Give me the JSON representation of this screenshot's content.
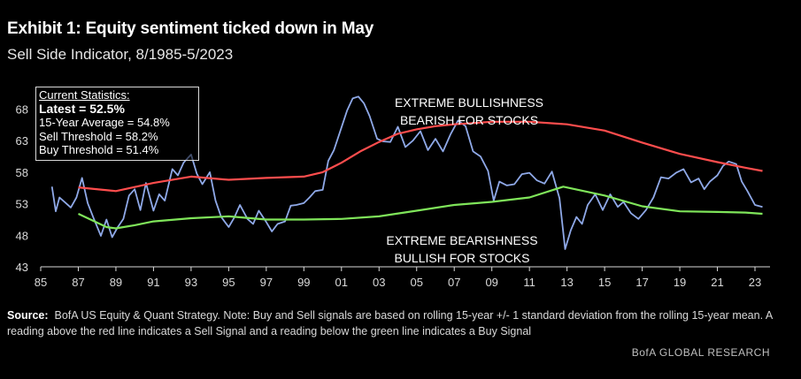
{
  "header": {
    "title": "Exhibit 1: Equity sentiment ticked down in May",
    "subtitle": "Sell Side Indicator, 8/1985-5/2023"
  },
  "stats": {
    "heading": "Current Statistics:",
    "latest": "Latest = 52.5%",
    "avg": "15-Year Average = 54.8%",
    "sell": "Sell Threshold = 58.2%",
    "buy": "Buy Threshold = 51.4%"
  },
  "annotations": {
    "bull_1": "EXTREME BULLISHNESS",
    "bull_2": "BEARISH FOR STOCKS",
    "bear_1": "EXTREME BEARISHNESS",
    "bear_2": "BULLISH FOR STOCKS"
  },
  "source": {
    "label": "Source:",
    "text": "BofA US Equity & Quant Strategy. Note: Buy and Sell signals are based on rolling 15-year +/- 1 standard deviation from the rolling 15-year mean. A reading above the red line indicates a Sell Signal and a reading below the green line indicates a Buy Signal"
  },
  "footer": {
    "brand": "BofA GLOBAL RESEARCH"
  },
  "colors": {
    "indicator": "#8fa9e8",
    "sell": "#ff4d4d",
    "buy": "#7fe55a",
    "background": "#000000"
  },
  "chart_data": {
    "type": "line",
    "title": "Sell Side Indicator, 8/1985-5/2023",
    "xlabel": "",
    "ylabel": "",
    "xlim": [
      1985,
      2023.8
    ],
    "ylim": [
      43,
      72
    ],
    "xtick_labels": [
      "85",
      "87",
      "89",
      "91",
      "93",
      "95",
      "97",
      "99",
      "01",
      "03",
      "05",
      "07",
      "09",
      "11",
      "13",
      "15",
      "17",
      "19",
      "21",
      "23"
    ],
    "xtick_values": [
      1985,
      1987,
      1989,
      1991,
      1993,
      1995,
      1997,
      1999,
      2001,
      2003,
      2005,
      2007,
      2009,
      2011,
      2013,
      2015,
      2017,
      2019,
      2021,
      2023
    ],
    "ytick_values": [
      43,
      48,
      53,
      58,
      63,
      68
    ],
    "series": [
      {
        "name": "Sell Side Indicator",
        "x": [
          1985.6,
          1985.8,
          1986.0,
          1986.3,
          1986.6,
          1986.9,
          1987.2,
          1987.5,
          1987.8,
          1988.2,
          1988.5,
          1988.8,
          1989.1,
          1989.4,
          1989.7,
          1990.0,
          1990.3,
          1990.6,
          1991.0,
          1991.3,
          1991.6,
          1992.0,
          1992.3,
          1992.6,
          1993.0,
          1993.3,
          1993.6,
          1994.0,
          1994.3,
          1994.6,
          1995.0,
          1995.3,
          1995.6,
          1996.0,
          1996.3,
          1996.6,
          1997.0,
          1997.3,
          1997.6,
          1998.0,
          1998.3,
          1998.6,
          1999.0,
          1999.3,
          1999.6,
          2000.0,
          2000.3,
          2000.6,
          2001.0,
          2001.3,
          2001.6,
          2001.9,
          2002.2,
          2002.5,
          2002.9,
          2003.2,
          2003.6,
          2004.0,
          2004.4,
          2004.8,
          2005.2,
          2005.6,
          2006.0,
          2006.4,
          2006.8,
          2007.2,
          2007.6,
          2008.0,
          2008.4,
          2008.8,
          2009.1,
          2009.4,
          2009.8,
          2010.2,
          2010.6,
          2011.0,
          2011.4,
          2011.8,
          2012.2,
          2012.6,
          2012.9,
          2013.2,
          2013.5,
          2013.8,
          2014.1,
          2014.5,
          2014.9,
          2015.3,
          2015.7,
          2016.0,
          2016.4,
          2016.8,
          2017.2,
          2017.6,
          2018.0,
          2018.4,
          2018.8,
          2019.2,
          2019.6,
          2020.0,
          2020.3,
          2020.6,
          2021.0,
          2021.3,
          2021.6,
          2022.0,
          2022.3,
          2022.6,
          2023.0,
          2023.4
        ],
        "values": [
          55.7,
          51.8,
          54.0,
          53.2,
          52.4,
          54.0,
          57.1,
          53.1,
          50.8,
          47.9,
          50.5,
          47.7,
          49.3,
          50.6,
          54.3,
          55.3,
          52.0,
          56.3,
          51.9,
          54.5,
          53.5,
          58.5,
          57.5,
          59.5,
          60.8,
          57.8,
          56.1,
          58.0,
          53.5,
          50.9,
          49.3,
          50.8,
          52.8,
          50.6,
          49.8,
          51.9,
          50.1,
          48.6,
          49.8,
          50.2,
          52.7,
          52.8,
          53.1,
          54.0,
          55.0,
          55.2,
          59.8,
          61.5,
          65.1,
          67.8,
          69.7,
          70.0,
          68.9,
          66.9,
          63.3,
          62.9,
          62.8,
          65.2,
          62.0,
          63.0,
          64.5,
          61.5,
          63.3,
          61.3,
          64.0,
          66.2,
          65.3,
          61.3,
          60.5,
          58.2,
          53.5,
          56.5,
          55.9,
          56.1,
          57.7,
          57.9,
          56.7,
          56.2,
          58.1,
          53.9,
          45.8,
          48.8,
          50.9,
          49.8,
          52.8,
          54.5,
          52.0,
          54.5,
          52.5,
          53.3,
          51.5,
          50.6,
          52.0,
          54.0,
          57.2,
          57.0,
          57.9,
          58.5,
          56.4,
          57.0,
          55.3,
          56.5,
          57.5,
          59.0,
          59.7,
          59.3,
          56.5,
          55.0,
          52.8,
          52.5
        ]
      },
      {
        "name": "Sell Threshold",
        "x": [
          1987.0,
          1989.0,
          1991.0,
          1993.0,
          1995.0,
          1997.0,
          1999.0,
          2000.0,
          2001.0,
          2002.0,
          2003.0,
          2004.0,
          2005.0,
          2006.0,
          2007.0,
          2008.0,
          2009.0,
          2011.0,
          2013.0,
          2015.0,
          2017.0,
          2019.0,
          2021.0,
          2022.5,
          2023.4
        ],
        "values": [
          55.6,
          55.0,
          56.3,
          57.3,
          56.8,
          57.1,
          57.3,
          58.0,
          59.5,
          61.3,
          62.8,
          64.1,
          64.8,
          65.3,
          65.6,
          65.8,
          66.0,
          66.0,
          65.6,
          64.6,
          62.7,
          60.9,
          59.6,
          58.7,
          58.2
        ]
      },
      {
        "name": "Buy Threshold",
        "x": [
          1987.0,
          1988.5,
          1989.0,
          1990.0,
          1991.0,
          1993.0,
          1995.0,
          1997.0,
          1999.0,
          2001.0,
          2003.0,
          2005.0,
          2007.0,
          2009.0,
          2011.0,
          2012.8,
          2015.0,
          2017.0,
          2019.0,
          2021.0,
          2022.5,
          2023.4
        ],
        "values": [
          51.4,
          49.3,
          49.1,
          49.6,
          50.2,
          50.7,
          51.0,
          50.5,
          50.5,
          50.6,
          51.0,
          51.9,
          52.8,
          53.3,
          54.0,
          55.7,
          54.3,
          52.6,
          51.8,
          51.7,
          51.6,
          51.4
        ]
      }
    ]
  }
}
